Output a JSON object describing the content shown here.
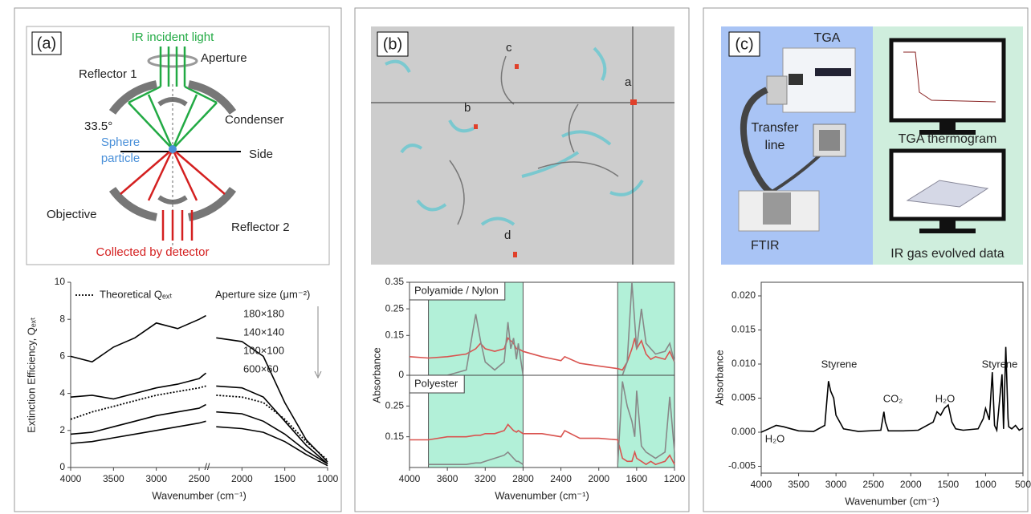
{
  "panels": [
    {
      "label": "(a)",
      "incident": "IR incident light",
      "aperture": "Aperture",
      "reflector1": "Reflector 1",
      "condenser": "Condenser",
      "angle": "33.5°",
      "particle_lines": [
        "Sphere",
        "particle"
      ],
      "side": "Side",
      "objective": "Objective",
      "reflector2": "Reflector 2",
      "detector": "Collected by detector"
    },
    {
      "label": "(b)",
      "points": [
        "a",
        "b",
        "c",
        "d"
      ]
    },
    {
      "label": "(c)",
      "tga": "TGA",
      "transfer_lines": [
        "Transfer",
        "line"
      ],
      "ftir": "FTIR",
      "thermogram": "TGA thermogram",
      "gas": "IR gas evolved data"
    }
  ],
  "chart_data": [
    {
      "type": "line",
      "xlabel": "Wavenumber (cm⁻¹)",
      "ylabel": "Extinction Efficiency, Qₑₓₜ",
      "xlim": [
        4000,
        1000
      ],
      "xticks": [
        4000,
        3500,
        3000,
        2500,
        2000,
        1500,
        1000
      ],
      "ylim": [
        0,
        10
      ],
      "yticks": [
        0,
        2,
        4,
        6,
        8,
        10
      ],
      "legend": true,
      "legend_title": "Aperture size (μm⁻²)",
      "x": [
        4000,
        3750,
        3500,
        3250,
        3000,
        2750,
        2500,
        2420,
        2350,
        2300,
        2000,
        1750,
        1500,
        1250,
        1000
      ],
      "series": [
        {
          "name": "Theoretical Qₑₓₜ",
          "color": "#000000",
          "style": "dotted",
          "values": [
            2.6,
            3.0,
            3.3,
            3.6,
            3.9,
            4.1,
            4.3,
            4.4,
            null,
            3.9,
            3.8,
            3.5,
            2.6,
            1.4,
            0.4
          ]
        },
        {
          "name": "180×180",
          "color": "#000000",
          "values": [
            6.0,
            5.7,
            6.5,
            7.0,
            7.8,
            7.5,
            8.0,
            8.2,
            null,
            7.0,
            6.8,
            6.0,
            3.5,
            1.5,
            0.3
          ]
        },
        {
          "name": "140×140",
          "color": "#000000",
          "values": [
            3.8,
            3.9,
            3.7,
            4.0,
            4.3,
            4.5,
            4.8,
            5.1,
            null,
            4.4,
            4.3,
            3.8,
            2.5,
            1.2,
            0.2
          ]
        },
        {
          "name": "100×100",
          "color": "#000000",
          "values": [
            1.8,
            1.9,
            2.2,
            2.5,
            2.8,
            3.0,
            3.2,
            3.4,
            null,
            3.0,
            2.9,
            2.5,
            1.8,
            0.9,
            0.2
          ]
        },
        {
          "name": "600×60",
          "color": "#000000",
          "values": [
            1.3,
            1.4,
            1.6,
            1.8,
            2.0,
            2.2,
            2.4,
            2.5,
            null,
            2.2,
            2.1,
            1.9,
            1.4,
            0.7,
            0.1
          ]
        }
      ]
    },
    {
      "type": "line",
      "title": "Polyamide / Nylon",
      "ylabel": "Absorbance",
      "xlim": [
        4000,
        1200
      ],
      "ylim": [
        0,
        0.35
      ],
      "yticks": [
        0,
        0.15,
        0.25,
        0.35
      ],
      "highlight_ranges": [
        [
          3800,
          2800
        ],
        [
          1800,
          1200
        ]
      ],
      "highlight_color": "#b2f0d8",
      "x": [
        4000,
        3800,
        3600,
        3400,
        3300,
        3250,
        3200,
        3100,
        3000,
        2960,
        2930,
        2900,
        2870,
        2850,
        2800,
        2600,
        2400,
        2360,
        2200,
        2000,
        1800,
        1750,
        1700,
        1650,
        1620,
        1600,
        1550,
        1500,
        1450,
        1400,
        1300,
        1250,
        1200
      ],
      "series": [
        {
          "color": "#d9534f",
          "values": [
            0.07,
            0.065,
            0.07,
            0.08,
            0.1,
            0.12,
            0.1,
            0.09,
            0.1,
            0.14,
            0.13,
            0.12,
            0.1,
            0.1,
            0.09,
            0.07,
            0.055,
            0.07,
            0.045,
            0.035,
            0.025,
            0.02,
            0.05,
            0.1,
            0.14,
            0.1,
            0.13,
            0.08,
            0.06,
            0.07,
            0.06,
            0.09,
            0.05
          ]
        },
        {
          "color": "#888888",
          "values": [
            null,
            0,
            0,
            0.02,
            0.23,
            0.13,
            0.05,
            0.02,
            0.05,
            0.2,
            0.1,
            0.14,
            0.06,
            0.12,
            0,
            null,
            null,
            null,
            null,
            null,
            0,
            0,
            0.05,
            0.35,
            0.2,
            0.1,
            0.25,
            0.12,
            0.1,
            0.08,
            0.09,
            0.12,
            0.05
          ]
        }
      ]
    },
    {
      "type": "line",
      "title": "Polyester",
      "xlabel": "Wavenumber (cm⁻¹)",
      "xlim": [
        4000,
        1200
      ],
      "xticks": [
        4000,
        3600,
        3200,
        2800,
        2400,
        2000,
        1600,
        1200
      ],
      "ylim": [
        0.05,
        0.35
      ],
      "yticks": [
        0.15,
        0.25
      ],
      "highlight_ranges": [
        [
          3800,
          2800
        ],
        [
          1800,
          1200
        ]
      ],
      "highlight_color": "#b2f0d8",
      "x": [
        4000,
        3800,
        3600,
        3400,
        3300,
        3250,
        3200,
        3100,
        3000,
        2960,
        2930,
        2900,
        2870,
        2850,
        2800,
        2600,
        2400,
        2360,
        2200,
        2000,
        1800,
        1750,
        1700,
        1650,
        1620,
        1600,
        1550,
        1500,
        1450,
        1400,
        1300,
        1250,
        1200
      ],
      "series": [
        {
          "color": "#d9534f",
          "values": [
            0.14,
            0.14,
            0.15,
            0.15,
            0.155,
            0.155,
            0.16,
            0.16,
            0.17,
            0.19,
            0.18,
            0.17,
            0.165,
            0.17,
            0.16,
            0.16,
            0.15,
            0.17,
            0.145,
            0.145,
            0.14,
            0.08,
            0.07,
            0.07,
            0.1,
            0.08,
            0.07,
            0.06,
            0.07,
            0.06,
            0.07,
            0.09,
            0.06
          ]
        },
        {
          "color": "#888888",
          "values": [
            null,
            0.06,
            0.06,
            0.06,
            0.065,
            0.065,
            0.07,
            0.08,
            0.09,
            0.1,
            0.09,
            0.08,
            0.07,
            0.07,
            0.06,
            null,
            null,
            null,
            null,
            null,
            0.06,
            0.33,
            0.25,
            0.2,
            0.15,
            0.3,
            0.12,
            0.1,
            0.09,
            0.08,
            0.1,
            0.28,
            0.1
          ]
        }
      ]
    },
    {
      "type": "line",
      "xlabel": "Wavenumber (cm⁻¹)",
      "ylabel": "Absorbance",
      "xlim": [
        4000,
        500
      ],
      "xticks": [
        4000,
        3500,
        3000,
        2500,
        2000,
        1500,
        1000,
        500
      ],
      "ylim": [
        -0.006,
        0.022
      ],
      "yticks": [
        -0.005,
        {
          "value": 0,
          "label": "0.000"
        },
        0.005,
        {
          "value": 0.01,
          "label": "0.010"
        },
        0.015,
        {
          "value": 0.02,
          "label": "0.020"
        }
      ],
      "annotations": [
        "H₂O",
        "Styrene",
        "CO₂",
        "H₂O",
        "Styrene"
      ],
      "x": [
        4000,
        3900,
        3800,
        3700,
        3600,
        3500,
        3300,
        3150,
        3100,
        3070,
        3030,
        3000,
        2900,
        2700,
        2400,
        2360,
        2340,
        2300,
        2100,
        1900,
        1700,
        1650,
        1600,
        1550,
        1500,
        1450,
        1400,
        1300,
        1100,
        1030,
        1000,
        950,
        910,
        880,
        850,
        780,
        760,
        730,
        700,
        690,
        650,
        600,
        550,
        500
      ],
      "series": [
        {
          "color": "#000000",
          "values": [
            0,
            0.0005,
            0.001,
            0.0008,
            0.0005,
            0.0002,
            0.0001,
            0.001,
            0.0075,
            0.006,
            0.005,
            0.0025,
            0.0005,
            0.0001,
            0.0003,
            0.003,
            0.0015,
            0.0002,
            0.0002,
            0.0003,
            0.0015,
            0.003,
            0.0025,
            0.0035,
            0.004,
            0.0015,
            0.0005,
            0.0003,
            0.0005,
            0.002,
            0.0035,
            0.0018,
            0.0088,
            0.001,
            0.0003,
            0.0085,
            0.0005,
            0.0125,
            0.002,
            0.0008,
            0.0005,
            0.001,
            0.0003,
            0.0006
          ]
        }
      ]
    }
  ]
}
